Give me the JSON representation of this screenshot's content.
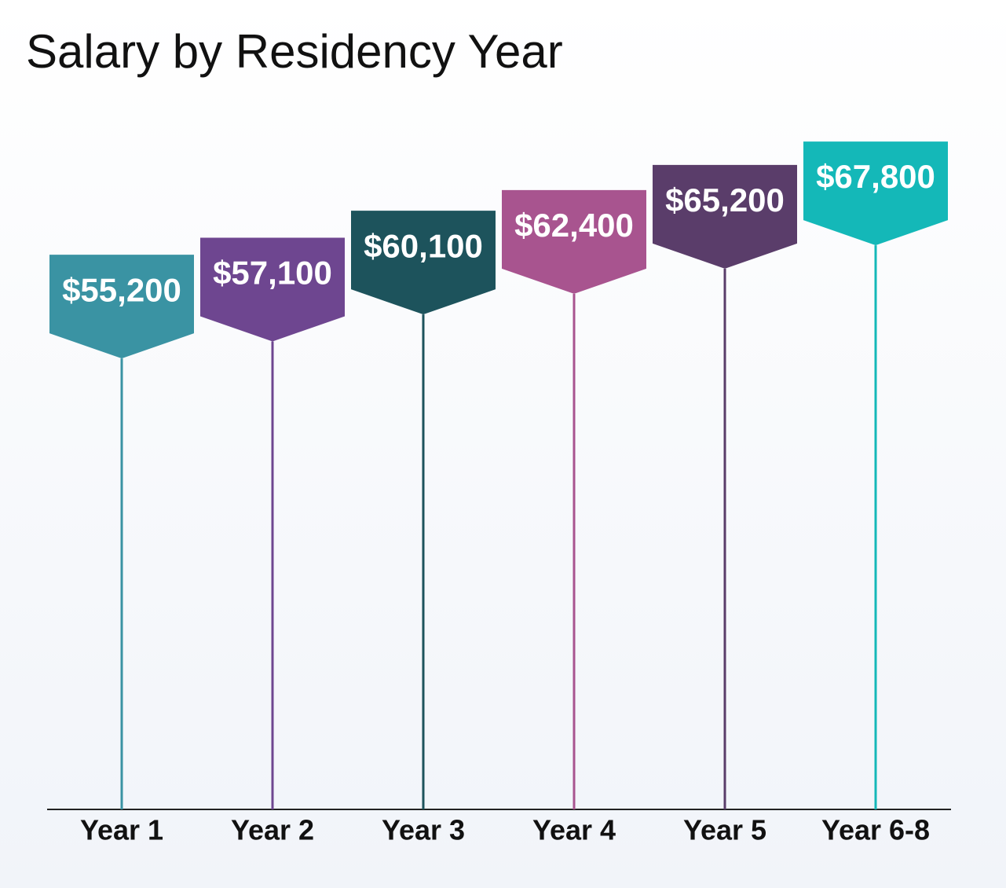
{
  "chart_data": {
    "type": "pennant",
    "title": "Salary by Residency Year",
    "categories": [
      "Year 1",
      "Year 2",
      "Year 3",
      "Year 4",
      "Year 5",
      "Year 6-8"
    ],
    "values": [
      55200,
      57100,
      60100,
      62400,
      65200,
      67800
    ],
    "value_labels": [
      "$55,200",
      "$57,100",
      "$60,100",
      "$62,400",
      "$65,200",
      "$67,800"
    ],
    "colors": [
      "#3a93a3",
      "#6e4690",
      "#1d535c",
      "#a8548f",
      "#5a3d6a",
      "#14b8b8"
    ],
    "ylim": [
      5000,
      70000
    ]
  }
}
